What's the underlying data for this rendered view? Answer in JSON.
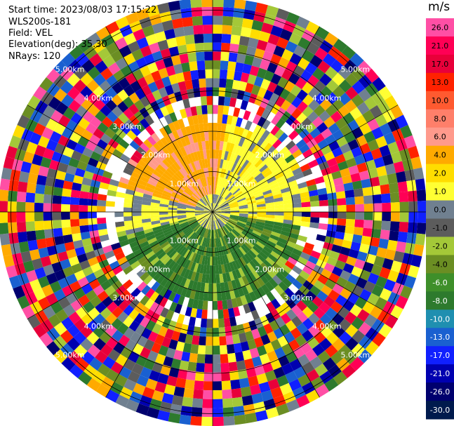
{
  "header": {
    "start_time": "Start time: 2023/08/03 17:15:22",
    "instrument": "WLS200s-181",
    "field": "Field: VEL",
    "elevation": "Elevation(deg): 35.30",
    "nrays": "NRays: 120"
  },
  "chart_data": {
    "type": "heatmap",
    "subtype": "polar-ppi",
    "unit": "m/s",
    "n_rays": 120,
    "ring_labels": [
      "1.00km",
      "2.00km",
      "3.00km",
      "4.00km",
      "5.00km"
    ],
    "ring_label_angles_deg": [
      45,
      135,
      225,
      315
    ],
    "colorbar": {
      "ticks": [
        "26.0",
        "21.0",
        "17.0",
        "13.0",
        "10.0",
        "8.0",
        "6.0",
        "4.0",
        "2.0",
        "1.0",
        "0.0",
        "-1.0",
        "-2.0",
        "-4.0",
        "-6.0",
        "-8.0",
        "-10.0",
        "-13.0",
        "-17.0",
        "-21.0",
        "-26.0",
        "-30.0"
      ],
      "colors": [
        "#ff4fa5",
        "#ff0055",
        "#e8003a",
        "#ff2200",
        "#ff5a30",
        "#ff7f6a",
        "#ff9a8c",
        "#ffaa00",
        "#ffdd00",
        "#ffff33",
        "#708090",
        "#5c5c5c",
        "#a4c838",
        "#6b8e23",
        "#3e8f2a",
        "#2d7a2d",
        "#1f8fb0",
        "#1a60d0",
        "#1020ff",
        "#0000b0",
        "#00006e",
        "#001a4d"
      ]
    },
    "inner_pattern": {
      "northwest": "orange",
      "northeast": "yellow",
      "south": "green",
      "west": "yellow"
    }
  }
}
